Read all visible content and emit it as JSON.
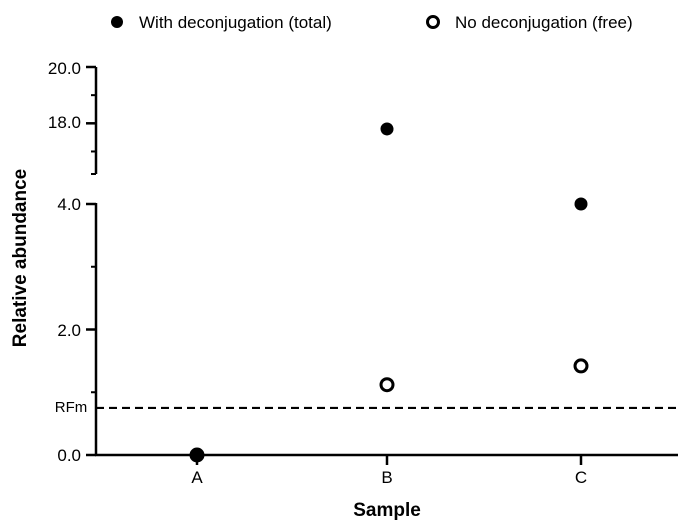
{
  "chart_data": {
    "type": "scatter",
    "title": "",
    "xlabel": "Sample",
    "ylabel": "Relative abundance",
    "categories": [
      "A",
      "B",
      "C"
    ],
    "y_axis_break": true,
    "y_segments": [
      {
        "range": [
          0,
          4.0
        ],
        "ticks": [
          "0.0",
          "2.0",
          "4.0"
        ],
        "tick_values": [
          0,
          2,
          4
        ]
      },
      {
        "range": [
          16.2,
          20.0
        ],
        "ticks": [
          "18.0",
          "20.0"
        ],
        "tick_values": [
          18,
          20
        ]
      }
    ],
    "series": [
      {
        "name": "With deconjugation (total)",
        "marker": "filled-circle",
        "values": [
          0.0,
          17.8,
          4.0
        ]
      },
      {
        "name": "No deconjugation (free)",
        "marker": "open-circle",
        "values": [
          0.0,
          1.12,
          1.42
        ]
      }
    ],
    "reference_line": {
      "label": "RFm",
      "value": 0.75,
      "style": "dashed"
    },
    "legend_position": "top",
    "grid": false,
    "colors": {
      "marker": "#000000",
      "axis": "#000000",
      "background": "#ffffff"
    }
  }
}
